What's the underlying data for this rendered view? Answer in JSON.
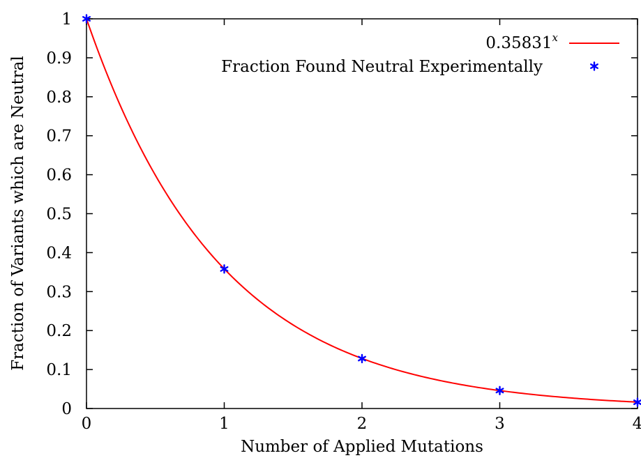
{
  "chart_data": {
    "type": "scatter",
    "title": "",
    "xlabel": "Number of Applied Mutations",
    "ylabel": "Fraction of Variants which are Neutral",
    "xlim": [
      0,
      4
    ],
    "ylim": [
      0,
      1
    ],
    "xticks": [
      0,
      1,
      2,
      3,
      4
    ],
    "yticks": [
      0,
      0.1,
      0.2,
      0.3,
      0.4,
      0.5,
      0.6,
      0.7,
      0.8,
      0.9,
      1
    ],
    "xtick_labels": [
      "0",
      "1",
      "2",
      "3",
      "4"
    ],
    "ytick_labels": [
      "0",
      "0.1",
      "0.2",
      "0.3",
      "0.4",
      "0.5",
      "0.6",
      "0.7",
      "0.8",
      "0.9",
      "1"
    ],
    "grid": false,
    "legend_position": "top-right",
    "series": [
      {
        "name": "0.35831^x",
        "legend_base": "0.35831",
        "legend_exponent": "x",
        "kind": "line",
        "base": 0.35831,
        "color": "#ff0000"
      },
      {
        "name": "Fraction Found Neutral Experimentally",
        "kind": "points",
        "marker": "star",
        "color": "#0000ff",
        "x": [
          0,
          1,
          2,
          3,
          4
        ],
        "y": [
          1.0,
          0.358,
          0.128,
          0.046,
          0.016
        ]
      }
    ]
  }
}
